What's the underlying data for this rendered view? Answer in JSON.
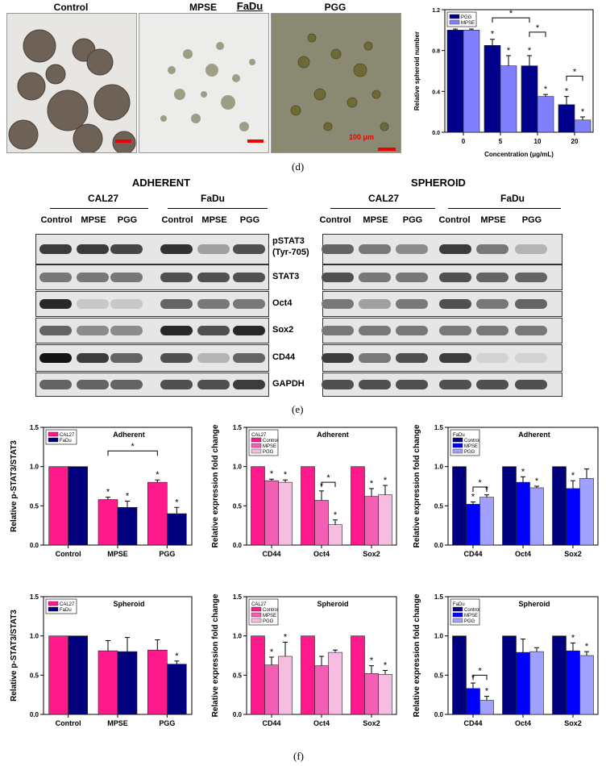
{
  "panel_d": {
    "title": "FaDu",
    "caption": "(d)",
    "images": [
      {
        "label": "Control",
        "scale_bar": ""
      },
      {
        "label": "MPSE",
        "scale_bar": ""
      },
      {
        "label": "PGG",
        "scale_bar": "100 μm"
      }
    ]
  },
  "panel_e": {
    "caption": "(e)",
    "left_title": "ADHERENT",
    "right_title": "SPHEROID",
    "cell_lines": [
      "CAL27",
      "FaDu"
    ],
    "lanes": [
      "Control",
      "MPSE",
      "PGG"
    ],
    "proteins": [
      "pSTAT3\n(Tyr-705)",
      "STAT3",
      "Oct4",
      "Sox2",
      "CD44",
      "GAPDH"
    ]
  },
  "panel_f": {
    "caption": "(f)"
  },
  "colors": {
    "pink": "#ff1a8c",
    "navy": "#00007f",
    "mid_pink": "#f35fb2",
    "light_pink": "#f7bde0",
    "blue": "#0000ff",
    "light_blue": "#a0a0ff",
    "bar_dark": "#00008b",
    "bar_light": "#8080ff"
  },
  "chart_data": [
    {
      "id": "d_spheroid",
      "type": "bar",
      "categories": [
        "0",
        "5",
        "10",
        "20"
      ],
      "series": [
        {
          "name": "PGG",
          "values": [
            1.0,
            0.85,
            0.65,
            0.27
          ],
          "errors": [
            0.01,
            0.06,
            0.1,
            0.08
          ]
        },
        {
          "name": "MPSE",
          "values": [
            1.0,
            0.65,
            0.35,
            0.12
          ],
          "errors": [
            0.01,
            0.1,
            0.02,
            0.03
          ]
        }
      ],
      "xlabel": "Concentration (μg/mL)",
      "ylabel": "Relative spheroid number",
      "ylim": [
        0,
        1.2
      ],
      "yticks": [
        "0.0",
        "0.4",
        "0.8",
        "1.2"
      ],
      "stars": [
        "*",
        "*",
        "*",
        "*",
        "*",
        "*"
      ],
      "brackets": [
        "*",
        "*",
        "*"
      ]
    },
    {
      "id": "f1",
      "type": "bar",
      "title": "Adherent",
      "categories": [
        "Control",
        "MPSE",
        "PGG"
      ],
      "series": [
        {
          "name": "CAL27",
          "values": [
            1.0,
            0.58,
            0.8
          ],
          "errors": [
            0,
            0.03,
            0.03
          ]
        },
        {
          "name": "FaDu",
          "values": [
            1.0,
            0.48,
            0.4
          ],
          "errors": [
            0,
            0.08,
            0.08
          ]
        }
      ],
      "ylabel": "Relative p-STAT3/STAT3",
      "ylim": [
        0,
        1.5
      ],
      "yticks": [
        "0.0",
        "0.5",
        "1.0",
        "1.5"
      ],
      "stars": [
        "*",
        "*",
        "*",
        "*"
      ],
      "brackets": [
        "*"
      ]
    },
    {
      "id": "f2",
      "type": "bar",
      "title": "Adherent",
      "legend_title": "CAL27",
      "categories": [
        "CD44",
        "Oct4",
        "Sox2"
      ],
      "series": [
        {
          "name": "Control",
          "values": [
            1.0,
            1.0,
            1.0
          ],
          "errors": [
            0,
            0,
            0
          ]
        },
        {
          "name": "MPSE",
          "values": [
            0.82,
            0.57,
            0.62
          ],
          "errors": [
            0.02,
            0.12,
            0.1
          ]
        },
        {
          "name": "PGG",
          "values": [
            0.8,
            0.26,
            0.64
          ],
          "errors": [
            0.03,
            0.06,
            0.12
          ]
        }
      ],
      "ylabel": "Relative expression fold change",
      "ylim": [
        0,
        1.5
      ],
      "yticks": [
        "0.0",
        "0.5",
        "1.0",
        "1.5"
      ],
      "stars": [
        "*",
        "*",
        "*",
        "*",
        "*",
        "*"
      ],
      "brackets": [
        "*"
      ]
    },
    {
      "id": "f3",
      "type": "bar",
      "title": "Adherent",
      "legend_title": "FaDu",
      "categories": [
        "CD44",
        "Oct4",
        "Sox2"
      ],
      "series": [
        {
          "name": "Control",
          "values": [
            1.0,
            1.0,
            1.0
          ],
          "errors": [
            0,
            0,
            0
          ]
        },
        {
          "name": "MPSE",
          "values": [
            0.52,
            0.8,
            0.72
          ],
          "errors": [
            0.03,
            0.07,
            0.1
          ]
        },
        {
          "name": "PGG",
          "values": [
            0.61,
            0.73,
            0.85
          ],
          "errors": [
            0.03,
            0.02,
            0.12
          ]
        }
      ],
      "ylabel": "Relative expression fold change",
      "ylim": [
        0,
        1.5
      ],
      "yticks": [
        "0.0",
        "0.5",
        "1.0",
        "1.5"
      ],
      "stars": [
        "*",
        "*",
        "*",
        "*",
        "*"
      ],
      "brackets": [
        "*"
      ]
    },
    {
      "id": "f4",
      "type": "bar",
      "title": "Spheroid",
      "categories": [
        "Control",
        "MPSE",
        "PGG"
      ],
      "series": [
        {
          "name": "CAL27",
          "values": [
            1.0,
            0.81,
            0.82
          ],
          "errors": [
            0,
            0.13,
            0.13
          ]
        },
        {
          "name": "FaDu",
          "values": [
            1.0,
            0.8,
            0.64
          ],
          "errors": [
            0,
            0.18,
            0.04
          ]
        }
      ],
      "ylabel": "Relative p-STAT3/STAT3",
      "ylim": [
        0,
        1.5
      ],
      "yticks": [
        "0.0",
        "0.5",
        "1.0",
        "1.5"
      ],
      "stars": [
        "*"
      ],
      "brackets": []
    },
    {
      "id": "f5",
      "type": "bar",
      "title": "Spheroid",
      "legend_title": "CAL27",
      "categories": [
        "CD44",
        "Oct4",
        "Sox2"
      ],
      "series": [
        {
          "name": "Control",
          "values": [
            1.0,
            1.0,
            1.0
          ],
          "errors": [
            0,
            0,
            0
          ]
        },
        {
          "name": "MPSE",
          "values": [
            0.63,
            0.62,
            0.52
          ],
          "errors": [
            0.1,
            0.12,
            0.1
          ]
        },
        {
          "name": "PGG",
          "values": [
            0.74,
            0.79,
            0.51
          ],
          "errors": [
            0.18,
            0.03,
            0.05
          ]
        }
      ],
      "ylabel": "Relative expression fold change",
      "ylim": [
        0,
        1.5
      ],
      "yticks": [
        "0.0",
        "0.5",
        "1.0",
        "1.5"
      ],
      "stars": [
        "*",
        "*",
        "*",
        "*"
      ],
      "brackets": []
    },
    {
      "id": "f6",
      "type": "bar",
      "title": "Spheroid",
      "legend_title": "FaDu",
      "categories": [
        "CD44",
        "Oct4",
        "Sox2"
      ],
      "series": [
        {
          "name": "Control",
          "values": [
            1.0,
            1.0,
            1.0
          ],
          "errors": [
            0,
            0,
            0
          ]
        },
        {
          "name": "MPSE",
          "values": [
            0.33,
            0.79,
            0.81
          ],
          "errors": [
            0.07,
            0.17,
            0.1
          ]
        },
        {
          "name": "PGG",
          "values": [
            0.18,
            0.8,
            0.75
          ],
          "errors": [
            0.05,
            0.05,
            0.05
          ]
        }
      ],
      "ylabel": "Relative expression fold change",
      "ylim": [
        0,
        1.5
      ],
      "yticks": [
        "0.0",
        "0.5",
        "1.0",
        "1.5"
      ],
      "stars": [
        "*",
        "*",
        "*",
        "*"
      ],
      "brackets": [
        "*"
      ]
    }
  ]
}
